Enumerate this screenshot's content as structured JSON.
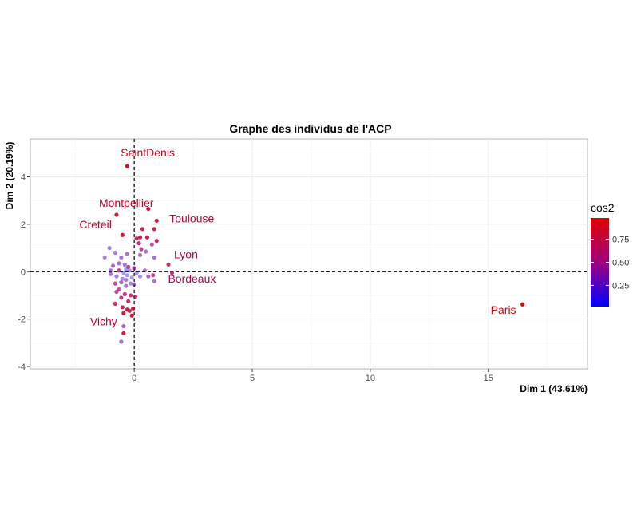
{
  "chart_data": {
    "type": "scatter",
    "title": "Graphe des individus de l'ACP",
    "xlabel": "Dim 1 (43.61%)",
    "ylabel": "Dim 2 (20.19%)",
    "xlim": [
      -4.4,
      19.2
    ],
    "ylim": [
      -4.1,
      5.6
    ],
    "xticks": [
      0,
      5,
      10,
      15
    ],
    "yticks": [
      -4,
      -2,
      0,
      2,
      4
    ],
    "reference_lines": {
      "x": 0,
      "y": 0,
      "style": "dashed"
    },
    "grid": true,
    "legend": {
      "title": "cos2",
      "type": "gradient",
      "ticks": [
        0.25,
        0.5,
        0.75
      ],
      "range": [
        0.02,
        0.98
      ],
      "colors": {
        "low": "#0000FF",
        "mid": "#A0007F",
        "high": "#E00000"
      },
      "position": "right"
    },
    "labeled_points": [
      {
        "label": "SaintDenis",
        "x": -0.3,
        "y": 4.45,
        "cos2": 0.9
      },
      {
        "label": "Montpellier",
        "x": -0.75,
        "y": 2.4,
        "cos2": 0.85
      },
      {
        "label": "Toulouse",
        "x": 0.95,
        "y": 2.15,
        "cos2": 0.8
      },
      {
        "label": "Creteil",
        "x": -0.5,
        "y": 1.55,
        "cos2": 0.85
      },
      {
        "label": "Lyon",
        "x": 1.45,
        "y": 0.3,
        "cos2": 0.7
      },
      {
        "label": "Bordeaux",
        "x": 1.6,
        "y": -0.05,
        "cos2": 0.65
      },
      {
        "label": "Paris",
        "x": 16.45,
        "y": -1.38,
        "cos2": 0.98
      },
      {
        "label": "Vichy",
        "x": -0.45,
        "y": -2.6,
        "cos2": 0.8
      }
    ],
    "points": [
      {
        "x": 0.6,
        "y": 2.65,
        "cos2": 0.85
      },
      {
        "x": 0.35,
        "y": 1.8,
        "cos2": 0.8
      },
      {
        "x": 0.85,
        "y": 1.8,
        "cos2": 0.8
      },
      {
        "x": 0.25,
        "y": 1.45,
        "cos2": 0.8
      },
      {
        "x": 0.55,
        "y": 1.45,
        "cos2": 0.8
      },
      {
        "x": 0.95,
        "y": 1.3,
        "cos2": 0.8
      },
      {
        "x": 0.1,
        "y": 1.4,
        "cos2": 0.75
      },
      {
        "x": 0.2,
        "y": 1.2,
        "cos2": 0.7
      },
      {
        "x": 0.3,
        "y": 0.95,
        "cos2": 0.6
      },
      {
        "x": 0.75,
        "y": 1.15,
        "cos2": 0.55
      },
      {
        "x": 0.25,
        "y": 0.7,
        "cos2": 0.35
      },
      {
        "x": 0.5,
        "y": 0.85,
        "cos2": 0.3
      },
      {
        "x": 0.85,
        "y": 0.6,
        "cos2": 0.3
      },
      {
        "x": -1.25,
        "y": 0.6,
        "cos2": 0.2
      },
      {
        "x": -1.05,
        "y": 1.0,
        "cos2": 0.2
      },
      {
        "x": -0.8,
        "y": 0.8,
        "cos2": 0.25
      },
      {
        "x": -0.55,
        "y": 0.6,
        "cos2": 0.3
      },
      {
        "x": -0.3,
        "y": 0.75,
        "cos2": 0.3
      },
      {
        "x": -0.9,
        "y": 0.25,
        "cos2": 0.35
      },
      {
        "x": -0.65,
        "y": 0.35,
        "cos2": 0.3
      },
      {
        "x": -0.4,
        "y": 0.3,
        "cos2": 0.3
      },
      {
        "x": -1.0,
        "y": -0.1,
        "cos2": 0.3
      },
      {
        "x": -0.75,
        "y": -0.2,
        "cos2": 0.25
      },
      {
        "x": -0.45,
        "y": -0.05,
        "cos2": 0.1
      },
      {
        "x": -0.3,
        "y": -0.15,
        "cos2": 0.05
      },
      {
        "x": -0.2,
        "y": 0.05,
        "cos2": 0.05
      },
      {
        "x": -0.1,
        "y": -0.25,
        "cos2": 0.05
      },
      {
        "x": -0.35,
        "y": 0.1,
        "cos2": 0.08
      },
      {
        "x": -0.5,
        "y": -0.3,
        "cos2": 0.12
      },
      {
        "x": 0.1,
        "y": -0.05,
        "cos2": 0.1
      },
      {
        "x": 0.25,
        "y": -0.2,
        "cos2": 0.15
      },
      {
        "x": -0.15,
        "y": -0.5,
        "cos2": 0.2
      },
      {
        "x": 0.0,
        "y": -0.55,
        "cos2": 0.3
      },
      {
        "x": -0.35,
        "y": -0.6,
        "cos2": 0.3
      },
      {
        "x": -0.55,
        "y": -0.45,
        "cos2": 0.35
      },
      {
        "x": -0.8,
        "y": -0.5,
        "cos2": 0.55
      },
      {
        "x": -0.65,
        "y": -0.75,
        "cos2": 0.5
      },
      {
        "x": -0.4,
        "y": -0.95,
        "cos2": 0.65
      },
      {
        "x": -0.15,
        "y": -1.0,
        "cos2": 0.7
      },
      {
        "x": 0.05,
        "y": -1.05,
        "cos2": 0.65
      },
      {
        "x": -0.55,
        "y": -1.1,
        "cos2": 0.65
      },
      {
        "x": -0.25,
        "y": -1.25,
        "cos2": 0.7
      },
      {
        "x": -0.8,
        "y": -1.35,
        "cos2": 0.75
      },
      {
        "x": -0.5,
        "y": -1.5,
        "cos2": 0.8
      },
      {
        "x": -0.3,
        "y": -1.6,
        "cos2": 0.8
      },
      {
        "x": -0.05,
        "y": -1.55,
        "cos2": 0.8
      },
      {
        "x": -0.45,
        "y": -1.75,
        "cos2": 0.85
      },
      {
        "x": -0.1,
        "y": -1.85,
        "cos2": 0.85
      },
      {
        "x": -0.2,
        "y": -1.65,
        "cos2": 0.8
      },
      {
        "x": 0.8,
        "y": -0.15,
        "cos2": 0.55
      },
      {
        "x": 0.85,
        "y": -0.4,
        "cos2": 0.3
      },
      {
        "x": 0.45,
        "y": 0.05,
        "cos2": 0.3
      },
      {
        "x": 0.6,
        "y": -0.2,
        "cos2": 0.35
      },
      {
        "x": -1.0,
        "y": 0.05,
        "cos2": 0.3
      },
      {
        "x": -0.75,
        "y": -0.85,
        "cos2": 0.55
      },
      {
        "x": -0.45,
        "y": -2.3,
        "cos2": 0.35
      },
      {
        "x": -0.55,
        "y": -2.95,
        "cos2": 0.3
      },
      {
        "x": -0.65,
        "y": 0.05,
        "cos2": 0.6
      },
      {
        "x": -0.25,
        "y": 0.2,
        "cos2": 0.6
      },
      {
        "x": 0.0,
        "y": 0.15,
        "cos2": 0.55
      },
      {
        "x": -0.35,
        "y": -0.35,
        "cos2": 0.25
      }
    ]
  }
}
